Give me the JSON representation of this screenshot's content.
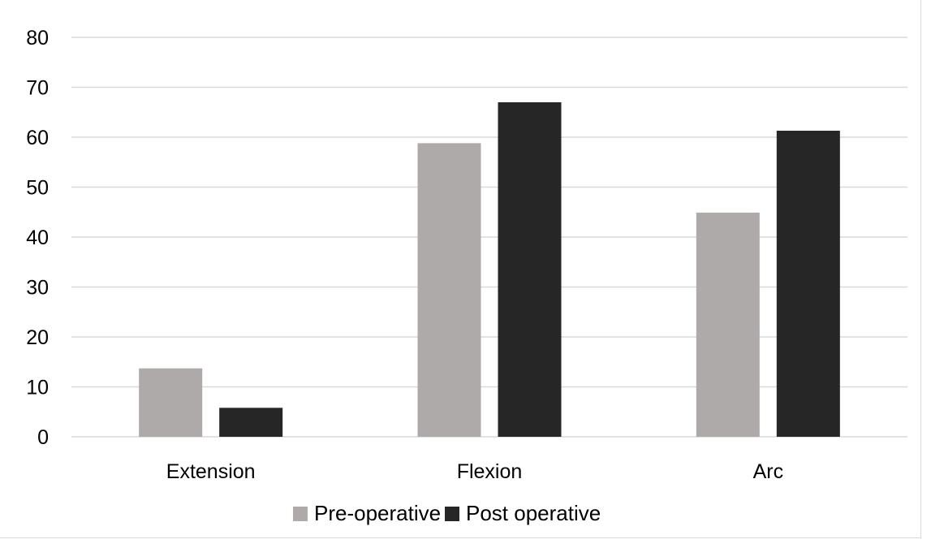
{
  "chart_data": {
    "type": "bar",
    "title": "",
    "xlabel": "",
    "ylabel": "",
    "categories": [
      "Extension",
      "Flexion",
      "Arc"
    ],
    "series": [
      {
        "name": "Pre-operative",
        "color": "#aeaaaa",
        "values": [
          13.7,
          58.8,
          44.9
        ]
      },
      {
        "name": "Post operative",
        "color": "#262626",
        "values": [
          5.8,
          67.0,
          61.3
        ]
      }
    ],
    "ylim": [
      0,
      80
    ],
    "yticks": [
      "0",
      "10",
      "20",
      "30",
      "40",
      "50",
      "60",
      "70",
      "80"
    ],
    "grid": true,
    "gridline_color": "#d9d9d9",
    "legend_position": "bottom"
  }
}
